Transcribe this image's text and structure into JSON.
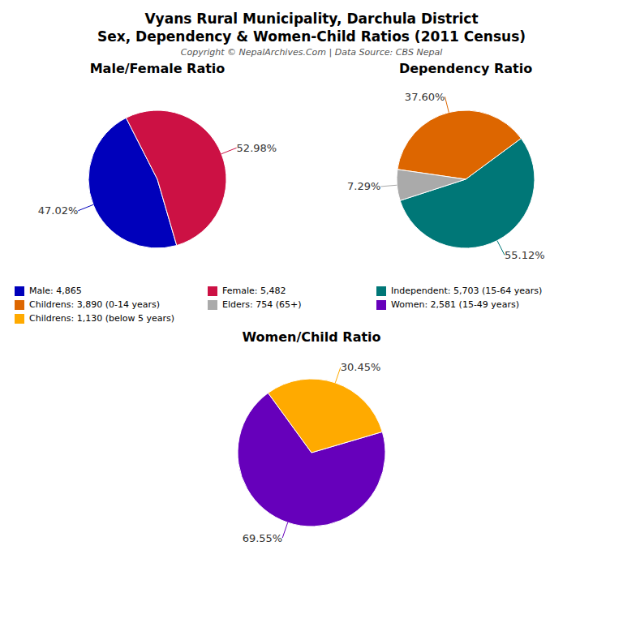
{
  "title": "Vyans Rural Municipality, Darchula District",
  "subtitle": "Sex, Dependency & Women-Child Ratios (2011 Census)",
  "annotations": [
    "Copyright © NepalArchives.Com | Data Source: CBS Nepal"
  ],
  "chart_data": [
    {
      "type": "pie",
      "title": "Male/Female Ratio",
      "categories": [
        "Male: 4,865",
        "Female: 5,482"
      ],
      "values": [
        47.02,
        52.98
      ],
      "value_labels": [
        "47.02%",
        "52.98%"
      ],
      "colors": [
        "#0000bb",
        "#cc1144"
      ],
      "data_labels": true,
      "legend": "center"
    },
    {
      "type": "pie",
      "title": "Dependency Ratio",
      "categories": [
        "Independent: 5,703 (15-64 years)",
        "Childrens: 3,890 (0-14 years)",
        "Elders: 754 (65+)"
      ],
      "values": [
        55.12,
        37.6,
        7.29
      ],
      "value_labels": [
        "55.12%",
        "37.60%",
        "7.29%"
      ],
      "colors": [
        "#007777",
        "#dd6600",
        "#aaaaaa"
      ],
      "data_labels": true,
      "legend": "center"
    },
    {
      "type": "pie",
      "title": "Women/Child Ratio",
      "categories": [
        "Women: 2,581 (15-49 years)",
        "Childrens: 1,130 (below 5 years)"
      ],
      "values": [
        69.55,
        30.45
      ],
      "value_labels": [
        "69.55%",
        "30.45%"
      ],
      "colors": [
        "#6600bb",
        "#ffaa00"
      ],
      "data_labels": true,
      "legend": "center"
    }
  ]
}
